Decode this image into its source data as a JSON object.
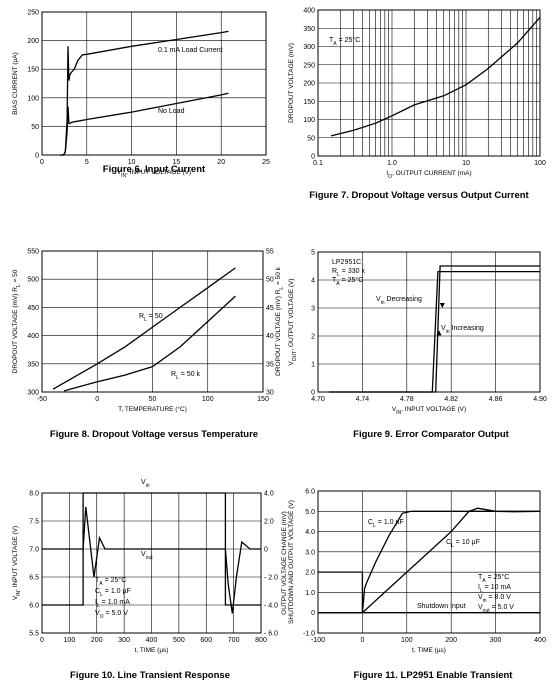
{
  "chart_data": [
    {
      "type": "line",
      "caption": "Figure 6. Input Current",
      "xlabel": "V_IN, INPUT VOLTAGE (V)",
      "ylabel": "BIAS CURRENT (µA)",
      "xlim": [
        0,
        25
      ],
      "ylim": [
        0,
        250
      ],
      "xticks": [
        0,
        5,
        10,
        15,
        20,
        25
      ],
      "yticks": [
        0,
        50,
        100,
        150,
        200,
        250
      ],
      "grid": true,
      "series": [
        {
          "name": "0.1 mA Load Current",
          "x": [
            2.0,
            2.4,
            2.6,
            2.8,
            2.9,
            3.0,
            3.1,
            3.3,
            3.6,
            4.0,
            4.5,
            5.0,
            10,
            15,
            20,
            20.8
          ],
          "y": [
            0,
            0,
            5,
            60,
            190,
            130,
            140,
            145,
            150,
            165,
            175,
            176,
            190,
            202,
            214,
            216
          ]
        },
        {
          "name": "No Load",
          "x": [
            2.0,
            2.4,
            2.6,
            2.8,
            2.9,
            3.0,
            3.1,
            3.3,
            3.6,
            5,
            10,
            15,
            20,
            20.8
          ],
          "y": [
            0,
            0,
            5,
            40,
            85,
            55,
            55,
            57,
            58,
            62,
            75,
            90,
            105,
            108
          ]
        }
      ],
      "annotations": [
        "0.1 mA Load Current",
        "No Load"
      ]
    },
    {
      "type": "line",
      "caption": "Figure 7. Dropout Voltage versus Output Current",
      "xlabel": "I_O, OUTPUT CURRENT (mA)",
      "ylabel": "DROPOUT VOLTAGE (mV)",
      "xscale": "log",
      "xlim": [
        0.1,
        100
      ],
      "ylim": [
        0,
        400
      ],
      "xticks": [
        0.1,
        1.0,
        10,
        100
      ],
      "xtick_labels": [
        "0.1",
        "1.0",
        "10",
        "100"
      ],
      "yticks": [
        0,
        50,
        100,
        150,
        200,
        250,
        300,
        350,
        400
      ],
      "grid": true,
      "series": [
        {
          "name": "",
          "x": [
            0.15,
            0.3,
            0.6,
            1,
            2,
            5,
            10,
            20,
            50,
            100
          ],
          "y": [
            55,
            70,
            90,
            110,
            140,
            165,
            195,
            240,
            310,
            380
          ]
        }
      ],
      "annotations": [
        "T_A = 25°C"
      ]
    },
    {
      "type": "line",
      "caption": "Figure 8. Dropout Voltage versus Temperature",
      "xlabel": "T, TEMPERATURE (°C)",
      "ylabel": "DROPOUT VOLTAGE (mV) R_L = 50",
      "ylabel_right": "DROPOUT VOLTAGE (mV) R_L = 50 k",
      "xlim": [
        -50,
        150
      ],
      "ylim": [
        300,
        550
      ],
      "ylim_right": [
        30,
        55
      ],
      "xticks": [
        -50,
        0,
        50,
        100,
        150
      ],
      "yticks": [
        300,
        350,
        400,
        450,
        500,
        550
      ],
      "yticks_right": [
        30,
        35,
        40,
        45,
        50,
        55
      ],
      "grid": true,
      "series": [
        {
          "name": "R_L = 50",
          "x": [
            -40,
            0,
            25,
            50,
            75,
            100,
            125
          ],
          "y": [
            305,
            350,
            380,
            415,
            450,
            485,
            520
          ]
        },
        {
          "name": "R_L = 50 k",
          "x": [
            -30,
            0,
            25,
            50,
            75,
            100,
            125
          ],
          "y": [
            302,
            318,
            330,
            345,
            380,
            425,
            470
          ]
        }
      ],
      "annotations": [
        "R_L = 50",
        "R_L = 50 k"
      ]
    },
    {
      "type": "line",
      "caption": "Figure 9. Error Comparator Output",
      "xlabel": "V_IN, INPUT VOLTAGE (V)",
      "ylabel": "V_OUT, OUTPUT VOLTAGE (V)",
      "xlim": [
        4.7,
        4.9
      ],
      "ylim": [
        0,
        5
      ],
      "xticks": [
        4.7,
        4.74,
        4.78,
        4.82,
        4.86,
        4.9
      ],
      "xtick_labels": [
        "4.70",
        "4.74",
        "4.78",
        "4.82",
        "4.86",
        "4.90"
      ],
      "yticks": [
        0,
        1,
        2,
        3,
        4,
        5
      ],
      "grid": true,
      "series": [
        {
          "name": "V_in Decreasing",
          "x": [
            4.71,
            4.8,
            4.806,
            4.81,
            4.815,
            4.9
          ],
          "y": [
            0,
            0,
            0,
            4.5,
            4.5,
            4.5
          ]
        },
        {
          "name": "V_in Increasing",
          "x": [
            4.71,
            4.803,
            4.808,
            4.812,
            4.9
          ],
          "y": [
            0,
            0,
            4.3,
            4.3,
            4.3
          ]
        }
      ],
      "annotations": [
        "LP2951C",
        "R_L = 330 k",
        "T_A = 25°C",
        "V_in Decreasing",
        "V_in Increasing"
      ]
    },
    {
      "type": "line",
      "caption": "Figure 10. Line Transient Response",
      "xlabel": "t, TIME (µs)",
      "ylabel": "V_IN, INPUT VOLTAGE (V)",
      "ylabel_right": "OUTPUT VOLTAGE CHANGE (mV)",
      "xlim": [
        0,
        800
      ],
      "ylim": [
        5.5,
        8.0
      ],
      "ylim_right": [
        -6.0,
        4.0
      ],
      "xticks": [
        0,
        100,
        200,
        300,
        400,
        500,
        600,
        700,
        800
      ],
      "yticks": [
        5.5,
        6.0,
        6.5,
        7.0,
        7.5,
        8.0
      ],
      "ytick_labels": [
        "5.5",
        "6.0",
        "6.5",
        "7.0",
        "7.5",
        "8.0"
      ],
      "yticks_right": [
        -6.0,
        -4.0,
        -2.0,
        0,
        2.0,
        4.0
      ],
      "ytick_labels_right": [
        "- 6.0",
        "- 4.0",
        "- 2.0",
        "0",
        "2.0",
        "4.0"
      ],
      "grid": true,
      "series": [
        {
          "name": "V_in",
          "x": [
            0,
            150,
            150,
            670,
            670,
            800
          ],
          "y": [
            6.0,
            6.0,
            8.0,
            8.0,
            6.0,
            6.0
          ]
        },
        {
          "name": "V_out",
          "x": [
            0,
            150,
            160,
            175,
            190,
            210,
            230,
            260,
            670,
            680,
            695,
            710,
            730,
            760,
            800
          ],
          "y": [
            0,
            0,
            3.0,
            0.5,
            -2.0,
            0.8,
            0,
            0,
            0,
            -2.5,
            -4.6,
            -2.0,
            0.5,
            0,
            0
          ]
        }
      ],
      "annotations": [
        "V_in",
        "V_out",
        "T_A = 25°C",
        "C_L = 1.0 µF",
        "I_L = 1.0 mA",
        "V_O = 5.0 V"
      ]
    },
    {
      "type": "line",
      "caption": "Figure 11. LP2951 Enable Transient",
      "xlabel": "t, TIME (µs)",
      "ylabel": "SHUTDOWN AND OUTPUT VOLTAGE (V)",
      "xlim": [
        -100,
        400
      ],
      "ylim": [
        -1.0,
        6.0
      ],
      "xticks": [
        -100,
        0,
        100,
        200,
        300,
        400
      ],
      "yticks": [
        -1.0,
        0,
        1.0,
        2.0,
        3.0,
        4.0,
        5.0,
        6.0
      ],
      "ytick_labels": [
        "-1.0",
        "0",
        "1.0",
        "2.0",
        "3.0",
        "4.0",
        "5.0",
        "6.0"
      ],
      "grid": true,
      "series": [
        {
          "name": "C_L = 1.0 µF",
          "x": [
            -100,
            0,
            5,
            10,
            30,
            60,
            90,
            110,
            400
          ],
          "y": [
            0,
            0,
            1.2,
            1.5,
            2.5,
            3.8,
            4.9,
            5.0,
            5.0
          ]
        },
        {
          "name": "C_L = 10 µF",
          "x": [
            -100,
            0,
            50,
            100,
            150,
            200,
            240,
            260,
            300,
            340,
            400
          ],
          "y": [
            0,
            0,
            1.0,
            2.0,
            3.0,
            4.0,
            5.0,
            5.15,
            5.0,
            4.98,
            5.0
          ]
        },
        {
          "name": "Shutdown Input",
          "x": [
            -100,
            0,
            0,
            400
          ],
          "y": [
            2.0,
            2.0,
            0,
            0
          ]
        }
      ],
      "annotations": [
        "C_L = 1.0 µF",
        "C_L = 10 µF",
        "T_A = 25°C",
        "I_L = 10 mA",
        "V_in = 8.0 V",
        "V_out = 5.0 V",
        "Shutdown Input"
      ]
    }
  ]
}
